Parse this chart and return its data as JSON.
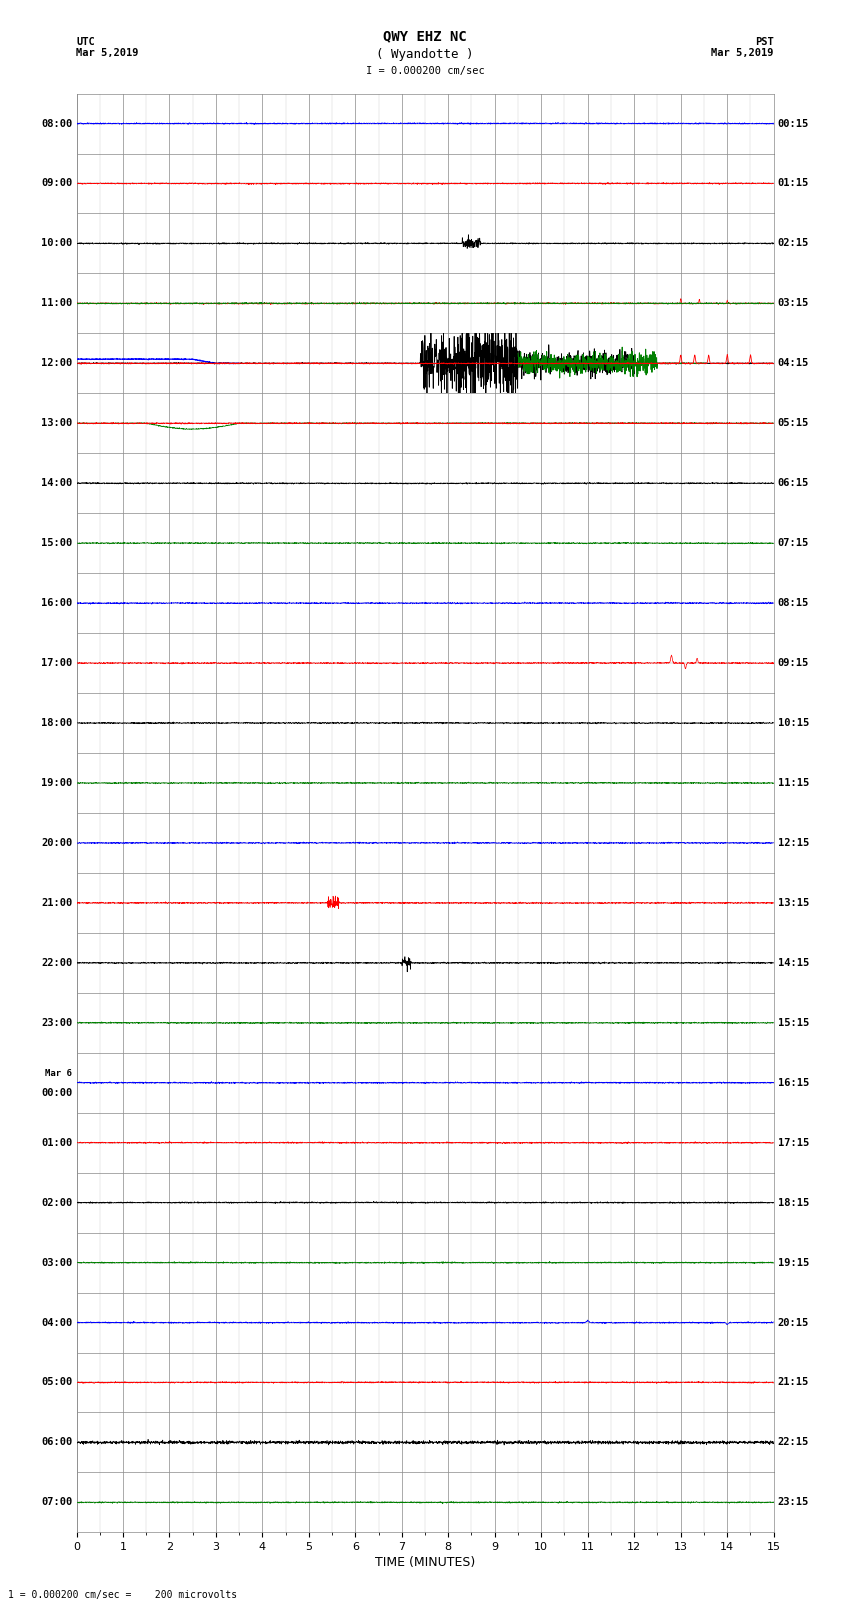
{
  "title_line1": "QWY EHZ NC",
  "title_line2": "( Wyandotte )",
  "title_line3": "I = 0.000200 cm/sec",
  "left_header_line1": "UTC",
  "left_header_line2": "Mar 5,2019",
  "right_header_line1": "PST",
  "right_header_line2": "Mar 5,2019",
  "xlabel": "TIME (MINUTES)",
  "footer": "1 = 0.000200 cm/sec =    200 microvolts",
  "bg_color": "#ffffff",
  "grid_color": "#888888",
  "num_rows": 24,
  "utc_labels": [
    "08:00",
    "09:00",
    "10:00",
    "11:00",
    "12:00",
    "13:00",
    "14:00",
    "15:00",
    "16:00",
    "17:00",
    "18:00",
    "19:00",
    "20:00",
    "21:00",
    "22:00",
    "23:00",
    "Mar 6\n00:00",
    "01:00",
    "02:00",
    "03:00",
    "04:00",
    "05:00",
    "06:00",
    "07:00"
  ],
  "pst_labels": [
    "00:15",
    "01:15",
    "02:15",
    "03:15",
    "04:15",
    "05:15",
    "06:15",
    "07:15",
    "08:15",
    "09:15",
    "10:15",
    "11:15",
    "12:15",
    "13:15",
    "14:15",
    "15:15",
    "16:15",
    "17:15",
    "18:15",
    "19:15",
    "20:15",
    "21:15",
    "22:15",
    "23:15"
  ],
  "row_colors": [
    "blue",
    "red",
    "black",
    "green",
    "blue",
    "red",
    "black",
    "green",
    "blue",
    "red",
    "black",
    "green",
    "blue",
    "red",
    "black",
    "green",
    "blue",
    "red",
    "black",
    "green",
    "blue",
    "red",
    "black",
    "green"
  ],
  "xmin": 0,
  "xmax": 15,
  "xticks": [
    0,
    1,
    2,
    3,
    4,
    5,
    6,
    7,
    8,
    9,
    10,
    11,
    12,
    13,
    14,
    15
  ],
  "figsize": [
    8.5,
    16.13
  ],
  "dpi": 100
}
